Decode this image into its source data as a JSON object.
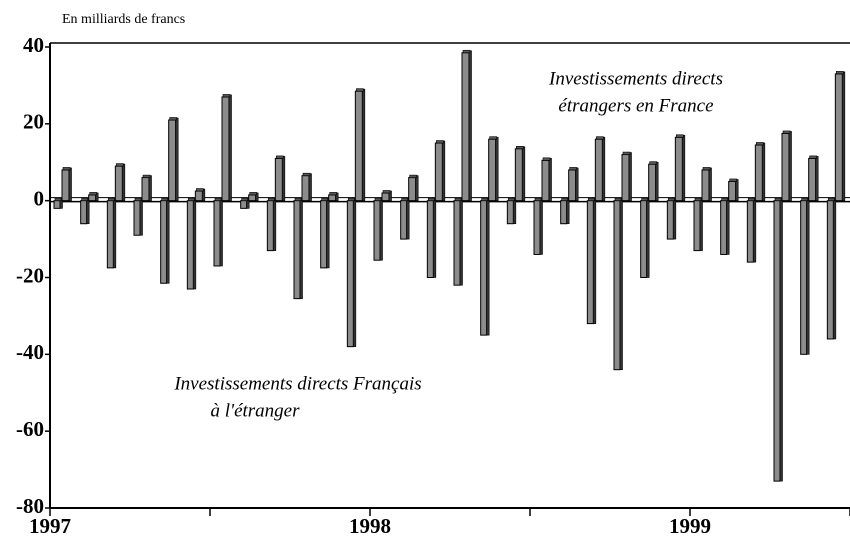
{
  "chart_data": {
    "type": "bar",
    "title": "En milliards de francs",
    "categories": [
      "1997",
      null,
      null,
      null,
      null,
      null,
      null,
      null,
      null,
      null,
      null,
      null,
      "1998",
      null,
      null,
      null,
      null,
      null,
      null,
      null,
      null,
      null,
      null,
      null,
      "1999",
      null,
      null,
      null,
      null,
      null
    ],
    "series": [
      {
        "color": "#8c8c8c",
        "values": [
          -2,
          -6,
          -17.5,
          -9,
          -21.5,
          -23,
          -17,
          -2,
          -13,
          -25.5,
          -17.5,
          -38,
          -15.5,
          -10,
          -20,
          -22,
          -35,
          -6,
          -14,
          -6,
          -32,
          -44,
          -20,
          -10,
          -13,
          -14,
          -16,
          -73,
          -40,
          -36
        ]
      },
      {
        "color": "#8c8c8c",
        "values": [
          8,
          1.5,
          9,
          6,
          21,
          2.5,
          27,
          1.5,
          11,
          6.5,
          1.5,
          28.5,
          2,
          6,
          15,
          38.5,
          16,
          13.5,
          10.5,
          8,
          16,
          12,
          9.5,
          16.5,
          8,
          5,
          14.5,
          17.5,
          11,
          33
        ]
      }
    ],
    "annotations": [
      [
        "Investissements directs",
        "étrangers en France"
      ],
      [
        "Investissements directs Français",
        "à l'étranger"
      ]
    ],
    "ylim": [
      -80,
      40
    ],
    "yticks": [
      -80,
      -60,
      -40,
      -20,
      0,
      20,
      40
    ]
  }
}
